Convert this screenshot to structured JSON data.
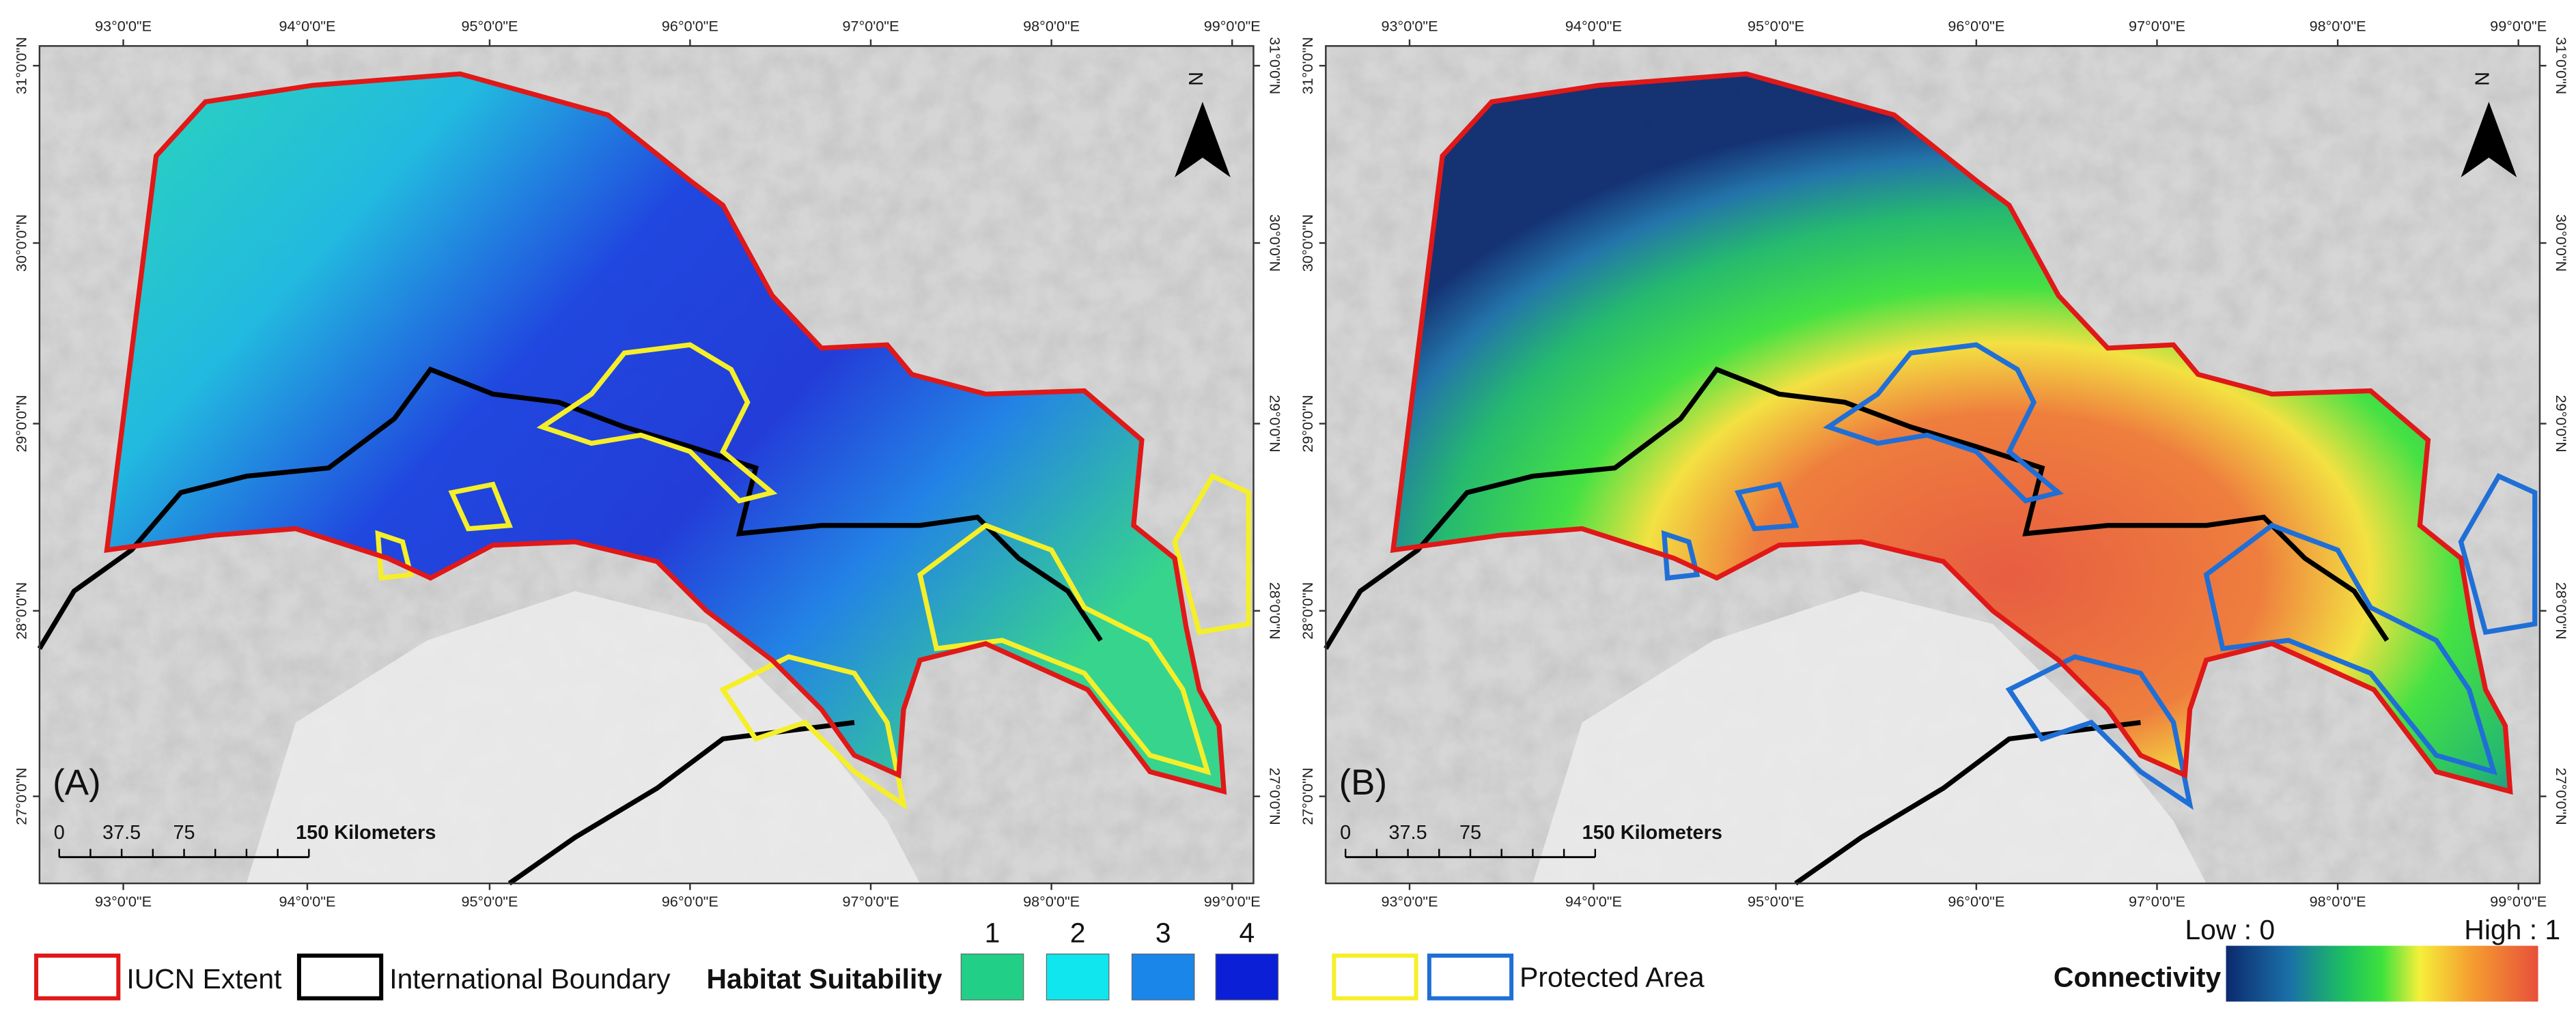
{
  "panels": [
    {
      "label": "(A)",
      "lon_labels": [
        "93°0'0\"E",
        "94°0'0\"E",
        "95°0'0\"E",
        "96°0'0\"E",
        "97°0'0\"E",
        "98°0'0\"E",
        "99°0'0\"E"
      ],
      "lat_labels": [
        "31°0'0\"N",
        "30°0'0\"N",
        "29°0'0\"N",
        "28°0'0\"N",
        "27°0'0\"N"
      ],
      "north": "N",
      "scale_labels": [
        "0",
        "37.5",
        "75",
        "150 Kilometers"
      ]
    },
    {
      "label": "(B)",
      "lon_labels": [
        "93°0'0\"E",
        "94°0'0\"E",
        "95°0'0\"E",
        "96°0'0\"E",
        "97°0'0\"E",
        "98°0'0\"E",
        "99°0'0\"E"
      ],
      "lat_labels": [
        "31°0'0\"N",
        "30°0'0\"N",
        "29°0'0\"N",
        "28°0'0\"N",
        "27°0'0\"N"
      ],
      "north": "N",
      "scale_labels": [
        "0",
        "37.5",
        "75",
        "150 Kilometers"
      ]
    }
  ],
  "legend": {
    "iucn": "IUCN Extent",
    "boundary": "International Boundary",
    "habitat_title": "Habitat Suitability",
    "habitat_classes": [
      "1",
      "2",
      "3",
      "4"
    ],
    "protected": "Protected Area",
    "connectivity_title": "Connectivity",
    "low": "Low : 0",
    "high": "High : 1"
  }
}
